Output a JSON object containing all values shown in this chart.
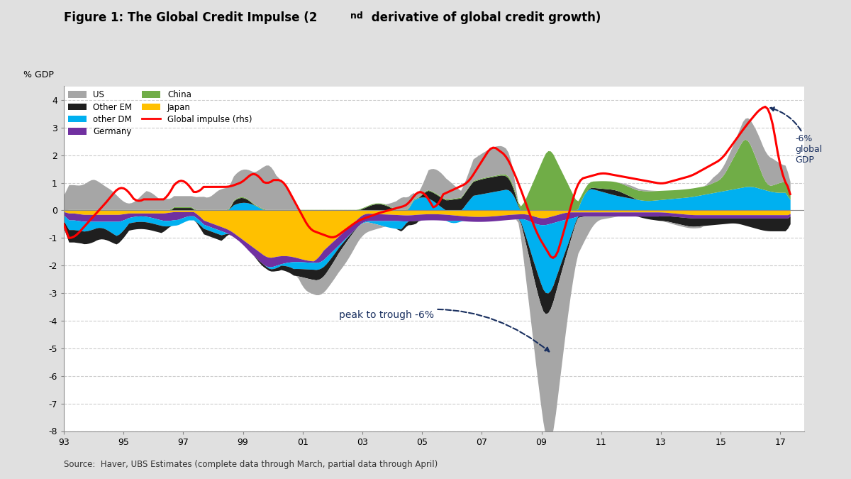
{
  "title": "Figure 1: The Global Credit Impulse (2ⁿᵈ derivative of global credit growth)",
  "ylabel": "% GDP",
  "source": "Source:  Haver, UBS Estimates (complete data through March, partial data through April)",
  "xlim": [
    1993,
    2017.8
  ],
  "ylim": [
    -8,
    4.5
  ],
  "yticks": [
    -8,
    -7,
    -6,
    -5,
    -4,
    -3,
    -2,
    -1,
    0,
    1,
    2,
    3,
    4
  ],
  "xticks": [
    1993,
    1995,
    1997,
    1999,
    2001,
    2003,
    2005,
    2007,
    2009,
    2011,
    2013,
    2015,
    2017
  ],
  "xticklabels": [
    "93",
    "95",
    "97",
    "99",
    "01",
    "03",
    "05",
    "07",
    "09",
    "11",
    "13",
    "15",
    "17"
  ],
  "colors": {
    "us": "#a6a6a6",
    "other_dm": "#00b0f0",
    "china": "#70ad47",
    "other_em": "#1f1f1f",
    "germany": "#7030a0",
    "japan": "#ffc000",
    "global_impulse": "#ff0000"
  },
  "legend_labels": {
    "us": "US",
    "other_dm": "other DM",
    "china": "China",
    "global_impulse": "Global impulse (rhs)",
    "other_em": "Other EM",
    "germany": "Germany",
    "japan": "Japan"
  },
  "background_color": "#e8e8e8",
  "chart_bg": "#ffffff"
}
